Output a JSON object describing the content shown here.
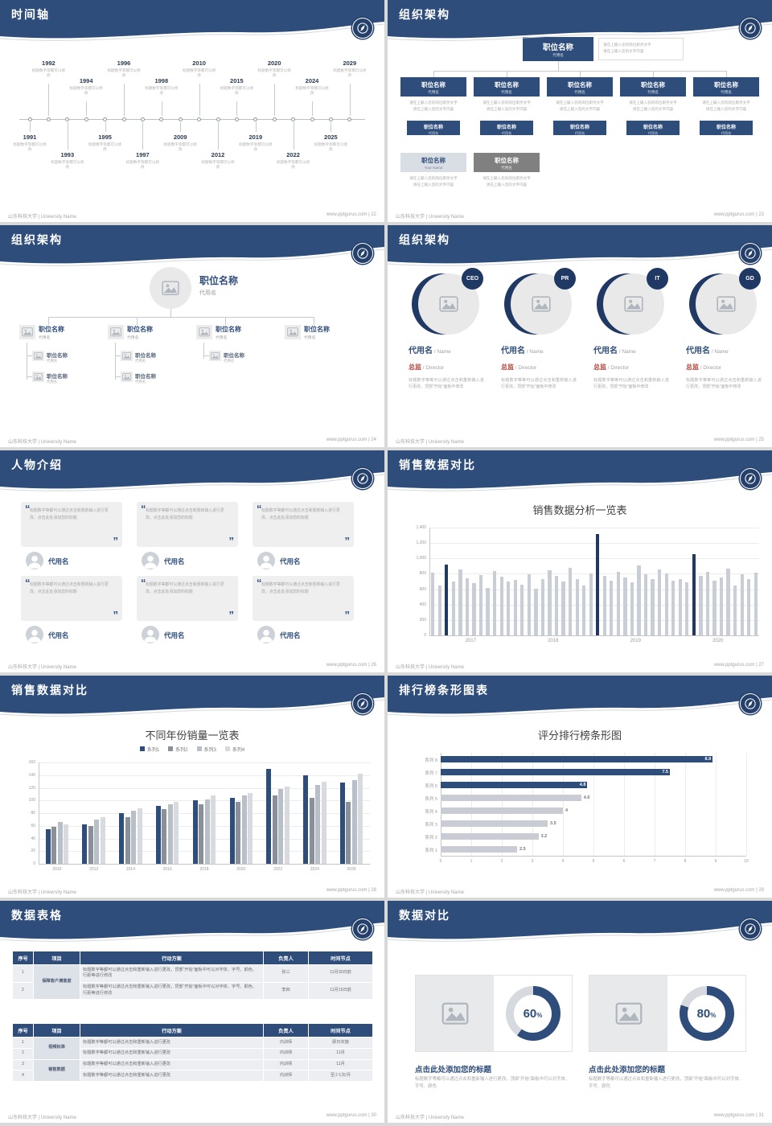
{
  "global": {
    "footer_left": "山东科技大学 | University Name",
    "site": "www.pptgurus.com",
    "colors": {
      "header_navy": "#2e4d7b",
      "accent_navy": "#1f3864",
      "bar_gray": "#c9ced6",
      "light_gray": "#d9dde4",
      "role_red": "#b0483e"
    }
  },
  "slides": {
    "timeline": {
      "title": "时间轴",
      "footer_right": "www.pptgurus.com | 22",
      "item_desc": "标题数字等都可以修改",
      "items": [
        {
          "year": "1991",
          "side": "bottom",
          "level": 1
        },
        {
          "year": "1992",
          "side": "top",
          "level": 2
        },
        {
          "year": "1993",
          "side": "bottom",
          "level": 2
        },
        {
          "year": "1994",
          "side": "top",
          "level": 1
        },
        {
          "year": "1995",
          "side": "bottom",
          "level": 1
        },
        {
          "year": "1996",
          "side": "top",
          "level": 2
        },
        {
          "year": "1997",
          "side": "bottom",
          "level": 2
        },
        {
          "year": "1998",
          "side": "top",
          "level": 1
        },
        {
          "year": "2009",
          "side": "bottom",
          "level": 1
        },
        {
          "year": "2010",
          "side": "top",
          "level": 2
        },
        {
          "year": "2012",
          "side": "bottom",
          "level": 2
        },
        {
          "year": "2015",
          "side": "top",
          "level": 1
        },
        {
          "year": "2019",
          "side": "bottom",
          "level": 1
        },
        {
          "year": "2020",
          "side": "top",
          "level": 2
        },
        {
          "year": "2022",
          "side": "bottom",
          "level": 2
        },
        {
          "year": "2024",
          "side": "top",
          "level": 1
        },
        {
          "year": "2025",
          "side": "bottom",
          "level": 1
        },
        {
          "year": "2029",
          "side": "top",
          "level": 2
        }
      ]
    },
    "org_boxes": {
      "title": "组织架构",
      "footer_right": "www.pptgurus.com | 23",
      "root": {
        "name": "职位名称",
        "sub": "代用名"
      },
      "note_line1": "请在上输入您的岗位职务文字",
      "note_line2": "请在上输入您的文字内容",
      "columns": [
        {
          "name": "职位名称",
          "sub": "代用名",
          "child_name": "职位名称",
          "child_sub": "代用名"
        },
        {
          "name": "职位名称",
          "sub": "代用名",
          "child_name": "职位名称",
          "child_sub": "代用名"
        },
        {
          "name": "职位名称",
          "sub": "代用名",
          "child_name": "职位名称",
          "child_sub": "代用名"
        },
        {
          "name": "职位名称",
          "sub": "代用名",
          "child_name": "职位名称",
          "child_sub": "代用名"
        },
        {
          "name": "职位名称",
          "sub": "代用名",
          "child_name": "职位名称",
          "child_sub": "代用名"
        }
      ],
      "extras": [
        {
          "name": "职位名称",
          "sub": "Your Name",
          "style": "light"
        },
        {
          "name": "职位名称",
          "sub": "代用名",
          "style": "dark"
        }
      ]
    },
    "org_tree": {
      "title": "组织架构",
      "footer_right": "www.pptgurus.com | 24",
      "root": {
        "name": "职位名称",
        "sub": "代用名"
      },
      "sub_name": "职位名称",
      "sub_sub": "代用名",
      "children": [
        {
          "name": "职位名称",
          "sub": "代用名",
          "subs": 2
        },
        {
          "name": "职位名称",
          "sub": "代用名",
          "subs": 2
        },
        {
          "name": "职位名称",
          "sub": "代用名",
          "subs": 1
        },
        {
          "name": "职位名称",
          "sub": "代用名",
          "subs": 0
        }
      ]
    },
    "org_circles": {
      "title": "组织架构",
      "footer_right": "www.pptgurus.com | 25",
      "desc": "标题数字等等可以通过点击和重新输入进行更改，顶部“开始”面板中修改",
      "members": [
        {
          "badge": "CEO",
          "name": "代用名",
          "name_suffix": " / Name",
          "role": "总监",
          "role_suffix": " / Director"
        },
        {
          "badge": "PR",
          "name": "代用名",
          "name_suffix": " / Name",
          "role": "总监",
          "role_suffix": " / Director"
        },
        {
          "badge": "IT",
          "name": "代用名",
          "name_suffix": " / Name",
          "role": "总监",
          "role_suffix": " / Director"
        },
        {
          "badge": "GD",
          "name": "代用名",
          "name_suffix": " / Name",
          "role": "总监",
          "role_suffix": " / Director"
        }
      ]
    },
    "people": {
      "title": "人物介绍",
      "footer_right": "www.pptgurus.com | 26",
      "cards": [
        {
          "text": "标题数字等都可以通过点击和重新输入进行更改，点击此处添加您的标题",
          "name": "代用名"
        },
        {
          "text": "标题数字等都可以通过点击和重新输入进行更改，点击此处添加您的标题",
          "name": "代用名"
        },
        {
          "text": "标题数字等都可以通过点击和重新输入进行更改，点击此处添加您的标题",
          "name": "代用名"
        },
        {
          "text": "标题数字等都可以通过点击和重新输入进行更改，点击此处添加您的标题",
          "name": "代用名"
        },
        {
          "text": "标题数字等都可以通过点击和重新输入进行更改，点击此处添加您的标题",
          "name": "代用名"
        },
        {
          "text": "标题数字等都可以通过点击和重新输入进行更改，点击此处添加您的标题",
          "name": "代用名"
        }
      ]
    },
    "sales_monthly": {
      "title": "销售数据对比",
      "footer_right": "www.pptgurus.com | 27"
    },
    "sales_yearly": {
      "title": "销售数据对比",
      "footer_right": "www.pptgurus.com | 28"
    },
    "ranking": {
      "title": "排行榜条形图表",
      "footer_right": "www.pptgurus.com | 29"
    },
    "tables": {
      "title": "数据表格",
      "footer_right": "www.pptgurus.com | 30",
      "headers": [
        "序号",
        "项目",
        "行动方案",
        "负责人",
        "时间节点"
      ],
      "table1": [
        {
          "seq": "1",
          "project": "保障客户满意度",
          "span": 2,
          "plan": "标题数字等都可以通过点击和重新输入进行更改，顶部“开始”面板中可以对字体、字号、颜色、行距等进行修改",
          "owner": "张三",
          "time": "11月30日前"
        },
        {
          "seq": "2",
          "plan": "标题数字等都可以通过点击和重新输入进行更改，顶部“开始”面板中可以对字体、字号、颜色、行距等进行修改",
          "owner": "李四",
          "time": "11月15日前"
        }
      ],
      "table2": [
        {
          "seq": "1",
          "project": "视频标准",
          "span": 2,
          "plan": "标题数字等都可以通过点击和重新输入进行更改",
          "owner": "内训师",
          "time": "即日实施"
        },
        {
          "seq": "2",
          "plan": "标题数字等都可以通过点击和重新输入进行更改",
          "owner": "内训师",
          "time": "11月"
        },
        {
          "seq": "3",
          "project": "销售数据",
          "span": 2,
          "plan": "标题数字等都可以通过点击和重新输入进行更改",
          "owner": "内训师",
          "time": "11月"
        },
        {
          "seq": "4",
          "plan": "标题数字等都可以通过点击和重新输入进行更改",
          "owner": "内训师",
          "time": "至少1次/月"
        }
      ]
    },
    "compare": {
      "title": "数据对比",
      "footer_right": "www.pptgurus.com | 31",
      "panels": [
        {
          "percent": 60,
          "label": "60",
          "unit": "%",
          "heading": "点击此处添加您的标题",
          "desc": "标题数字等都可以通过点击和重新输入进行更改，顶部“开始”面板中可以对字体、字号、颜色"
        },
        {
          "percent": 80,
          "label": "80",
          "unit": "%",
          "heading": "点击此处添加您的标题",
          "desc": "标题数字等都可以通过点击和重新输入进行更改，顶部“开始”面板中可以对字体、字号、颜色"
        }
      ]
    }
  },
  "chart_data": [
    {
      "slide": "27",
      "type": "bar",
      "title": "销售数据分析一览表",
      "x_groups": [
        "2017",
        "2018",
        "2019",
        "2020"
      ],
      "values": [
        820,
        650,
        920,
        700,
        860,
        740,
        680,
        780,
        620,
        840,
        760,
        700,
        720,
        660,
        790,
        610,
        730,
        850,
        770,
        700,
        880,
        730,
        650,
        800,
        1320,
        770,
        710,
        830,
        750,
        690,
        910,
        790,
        730,
        860,
        800,
        710,
        730,
        690,
        1060,
        770,
        830,
        710,
        750,
        870,
        650,
        790,
        730,
        810
      ],
      "highlight_indices": [
        2,
        24,
        38
      ],
      "highlight_color": "#1f3864",
      "bar_color": "#c9ced6",
      "ylim": [
        0,
        1400
      ],
      "ytick_step": 200,
      "ytick_labels": [
        "0",
        "200",
        "400",
        "600",
        "800",
        "1,000",
        "1,200",
        "1,400"
      ]
    },
    {
      "slide": "28",
      "type": "grouped-bar",
      "title": "不同年份销量一览表",
      "categories": [
        "2010",
        "2012",
        "2014",
        "2016",
        "2018",
        "2020",
        "2022",
        "2024",
        "2026"
      ],
      "series": [
        {
          "name": "系列1",
          "color": "#2e4d7b",
          "values": [
            55,
            62,
            80,
            92,
            100,
            104,
            150,
            140,
            128
          ]
        },
        {
          "name": "系列2",
          "color": "#8a909a",
          "values": [
            58,
            60,
            74,
            86,
            94,
            98,
            108,
            104,
            98
          ]
        },
        {
          "name": "系列3",
          "color": "#b9bfc7",
          "values": [
            66,
            70,
            84,
            94,
            102,
            108,
            118,
            124,
            132
          ]
        },
        {
          "name": "系列4",
          "color": "#d7dade",
          "values": [
            62,
            74,
            88,
            98,
            108,
            112,
            122,
            130,
            142
          ]
        }
      ],
      "ylim": [
        0,
        160
      ],
      "ytick_step": 20
    },
    {
      "slide": "29",
      "type": "horizontal-bar",
      "title": "评分排行榜条形图",
      "categories_top_to_bottom": [
        "系列 8",
        "系列 7",
        "系列 6",
        "系列 5",
        "系列 4",
        "系列 3",
        "系列 2",
        "系列 1"
      ],
      "values_top_to_bottom": [
        8.9,
        7.5,
        4.8,
        4.6,
        4,
        3.5,
        3.2,
        2.5
      ],
      "highlight_count_top": 3,
      "highlight_color": "#2e4d7b",
      "bar_color": "#c9ccd2",
      "xlim": [
        0,
        10
      ],
      "xticks": [
        0,
        1,
        2,
        3,
        4,
        5,
        6,
        7,
        8,
        9,
        10
      ]
    }
  ]
}
